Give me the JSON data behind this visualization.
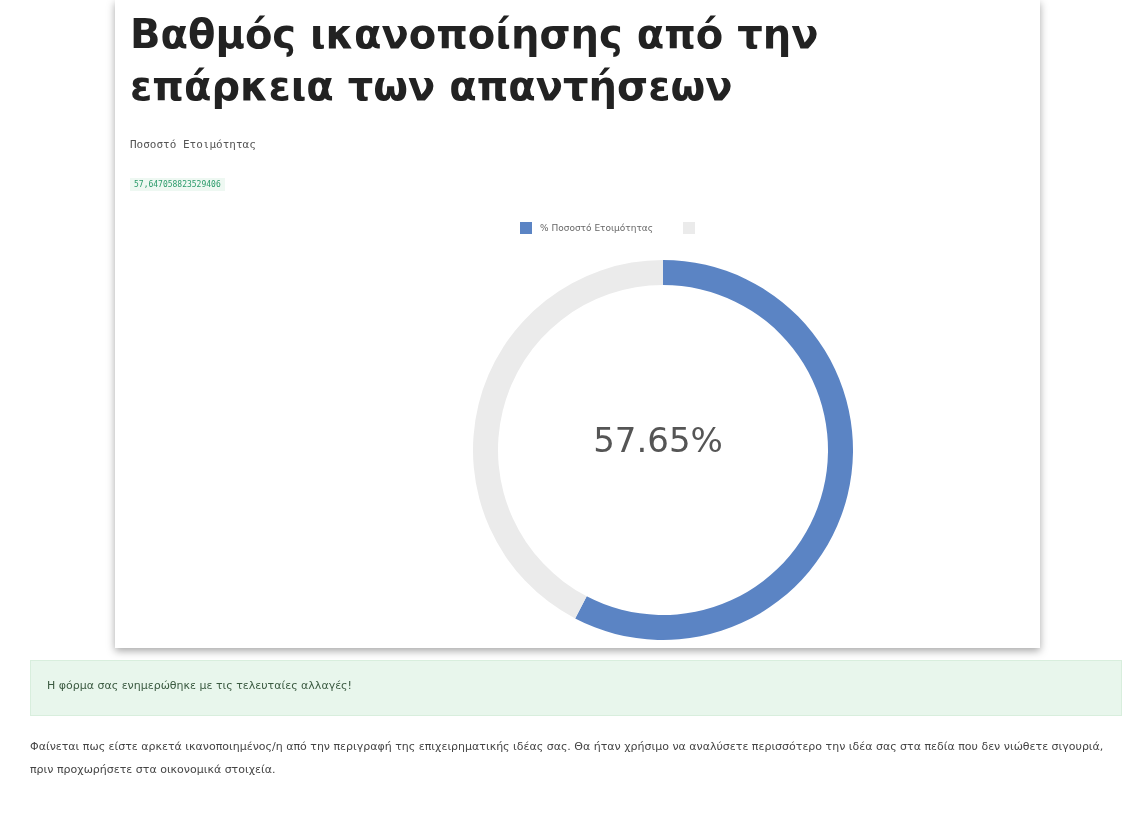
{
  "chart_data": {
    "type": "donut",
    "title": "Βαθμός ικανοποίησης από την επάρκεια των απαντήσεων",
    "subtitle": "Ποσοστό Ετοιμότητας",
    "categories": [
      "% Ποσοστό Ετοιμότητας",
      null
    ],
    "values": [
      57.65,
      42.35
    ],
    "colors": [
      "#5b84c4",
      "#ebebeb"
    ],
    "legend": "top",
    "annotations": [
      "57,647058823529406",
      "57.65%",
      "Η φόρμα σας ενημερώθηκε με τις τελευταίες αλλαγές!",
      "Φαίνεται πως είστε αρκετά ικανοποιημένος/η από την περιγραφή της επιχειρηματικής ιδέας σας. Θα ήταν χρήσιμο να αναλύσετε περισσότερο την ιδέα σας στα πεδία που δεν νιώθετε σιγουριά, πριν προχωρήσετε στα οικονομικά στοιχεία."
    ]
  }
}
